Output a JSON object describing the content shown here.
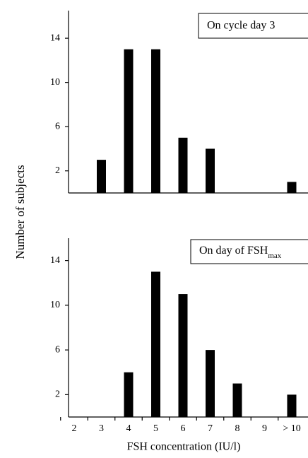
{
  "chart_data": [
    {
      "type": "bar",
      "ylabel": "Number of subjects",
      "annotation": "On cycle day 3",
      "categories": [
        null,
        null,
        null,
        null,
        null,
        null,
        null,
        null,
        null
      ],
      "values": [
        0,
        3,
        13,
        13,
        5,
        4,
        0,
        0,
        1
      ],
      "color": "#000000",
      "ylim": [
        0,
        16.5
      ],
      "yticks": [
        2,
        6,
        10,
        14
      ]
    },
    {
      "type": "bar",
      "xlabel": "FSH concentration (IU/l)",
      "annotation": "On day of FSH",
      "annotation_sub": "max",
      "categories": [
        "2",
        "3",
        "4",
        "5",
        "6",
        "7",
        "8",
        "9",
        "> 10"
      ],
      "values": [
        0,
        0,
        4,
        13,
        11,
        6,
        3,
        0,
        2
      ],
      "color": "#000000",
      "ylim": [
        0,
        16
      ],
      "yticks": [
        2,
        6,
        10,
        14
      ]
    }
  ]
}
